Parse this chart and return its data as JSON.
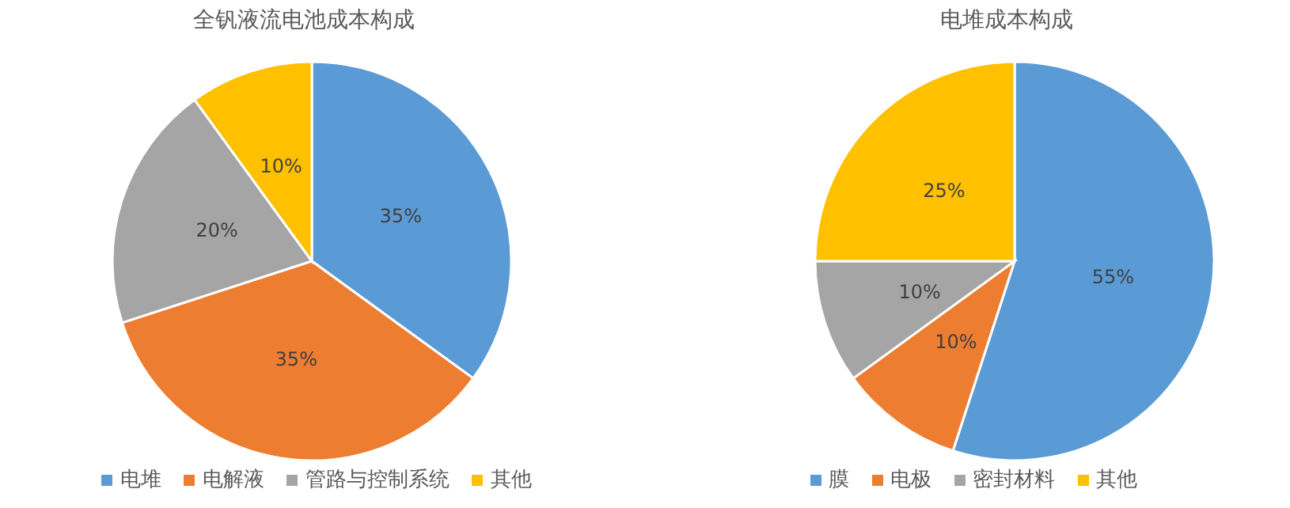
{
  "chart_data": [
    {
      "type": "pie",
      "title": "全钒液流电池成本构成",
      "categories": [
        "电堆",
        "电解液",
        "管路与控制系统",
        "其他"
      ],
      "values": [
        35,
        35,
        20,
        10
      ],
      "colors": [
        "#5b9bd5",
        "#ed7d31",
        "#a5a5a5",
        "#ffc000"
      ],
      "value_labels": [
        "35%",
        "35%",
        "20%",
        "10%"
      ],
      "legend": "bottom"
    },
    {
      "type": "pie",
      "title": "电堆成本构成",
      "categories": [
        "膜",
        "电极",
        "密封材料",
        "其他"
      ],
      "values": [
        55,
        10,
        10,
        25
      ],
      "colors": [
        "#5b9bd5",
        "#ed7d31",
        "#a5a5a5",
        "#ffc000"
      ],
      "value_labels": [
        "55%",
        "10%",
        "10%",
        "25%"
      ],
      "legend": "bottom"
    }
  ]
}
